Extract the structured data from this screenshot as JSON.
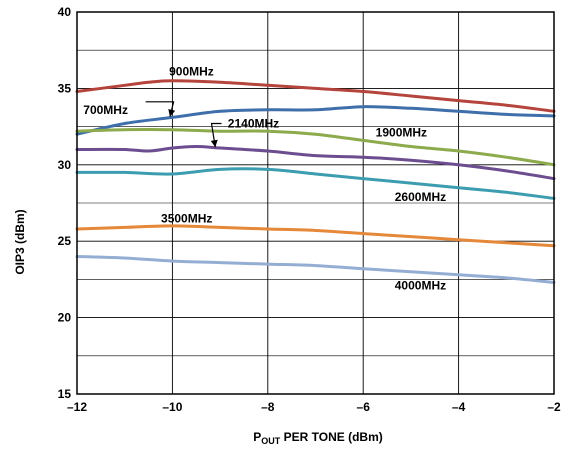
{
  "chart_data": {
    "type": "line",
    "title": "",
    "xlabel": {
      "main": "P",
      "sub": "OUT",
      "rest": " PER TONE (dBm)"
    },
    "ylabel": "OIP3 (dBm)",
    "xlim": [
      -12,
      -2
    ],
    "ylim": [
      15,
      40
    ],
    "grid": true,
    "x_ticks": [
      -12,
      -10,
      -8,
      -6,
      -4,
      -2
    ],
    "x_tick_labels": [
      "–12",
      "–10",
      "–8",
      "–6",
      "–4",
      "–2"
    ],
    "y_ticks": [
      15,
      20,
      25,
      30,
      35,
      40
    ],
    "y_tick_labels": [
      "15",
      "20",
      "25",
      "30",
      "35",
      "40"
    ],
    "series": [
      {
        "name": "900MHz",
        "color": "#b5443d",
        "x": [
          -12,
          -11,
          -10.5,
          -10,
          -9,
          -8,
          -7,
          -6,
          -5,
          -4,
          -3,
          -2
        ],
        "y": [
          34.8,
          35.2,
          35.4,
          35.5,
          35.4,
          35.2,
          35.0,
          34.8,
          34.5,
          34.2,
          33.9,
          33.5
        ]
      },
      {
        "name": "700MHz",
        "color": "#3f6fab",
        "x": [
          -12,
          -11,
          -10,
          -9,
          -8,
          -7,
          -6,
          -5,
          -4,
          -3,
          -2
        ],
        "y": [
          32.0,
          32.7,
          33.1,
          33.5,
          33.6,
          33.6,
          33.8,
          33.7,
          33.5,
          33.3,
          33.2
        ]
      },
      {
        "name": "1900MHz",
        "color": "#8daa4c",
        "x": [
          -12,
          -11,
          -10,
          -9,
          -8,
          -7,
          -6,
          -5,
          -4,
          -3,
          -2
        ],
        "y": [
          32.2,
          32.3,
          32.3,
          32.2,
          32.2,
          32.0,
          31.6,
          31.2,
          30.9,
          30.5,
          30.0
        ]
      },
      {
        "name": "2140MHz",
        "color": "#6c4d8f",
        "x": [
          -12,
          -11,
          -10.5,
          -10,
          -9.5,
          -9,
          -8,
          -7,
          -6,
          -5,
          -4,
          -3,
          -2
        ],
        "y": [
          31.0,
          31.0,
          30.9,
          31.1,
          31.2,
          31.1,
          30.9,
          30.6,
          30.5,
          30.3,
          30.0,
          29.6,
          29.1
        ]
      },
      {
        "name": "2600MHz",
        "color": "#3d9db0",
        "x": [
          -12,
          -11,
          -10,
          -9,
          -8,
          -7,
          -6,
          -5,
          -4,
          -3,
          -2
        ],
        "y": [
          29.5,
          29.5,
          29.4,
          29.7,
          29.7,
          29.4,
          29.1,
          28.8,
          28.5,
          28.2,
          27.8
        ]
      },
      {
        "name": "3500MHz",
        "color": "#e5883a",
        "x": [
          -12,
          -11,
          -10,
          -9,
          -8,
          -7,
          -6,
          -5,
          -4,
          -3,
          -2
        ],
        "y": [
          25.8,
          25.9,
          26.0,
          25.9,
          25.8,
          25.7,
          25.5,
          25.3,
          25.1,
          24.9,
          24.7
        ]
      },
      {
        "name": "4000MHz",
        "color": "#94aed3",
        "x": [
          -12,
          -11,
          -10,
          -9,
          -8,
          -7,
          -6,
          -5,
          -4,
          -3,
          -2
        ],
        "y": [
          24.0,
          23.9,
          23.7,
          23.6,
          23.5,
          23.4,
          23.2,
          23.0,
          22.8,
          22.6,
          22.3
        ]
      }
    ],
    "annotations": [
      {
        "text": "900MHz",
        "x": -9.6,
        "y": 36.1
      },
      {
        "text": "700MHz",
        "x": -11.4,
        "y": 33.6,
        "arrow_to": [
          -10.05,
          33.15
        ]
      },
      {
        "text": "2140MHz",
        "x": -8.3,
        "y": 32.7,
        "arrow_to": [
          -9.1,
          31.15
        ]
      },
      {
        "text": "1900MHz",
        "x": -5.2,
        "y": 32.1
      },
      {
        "text": "2600MHz",
        "x": -4.8,
        "y": 27.9
      },
      {
        "text": "3500MHz",
        "x": -9.7,
        "y": 26.5
      },
      {
        "text": "4000MHz",
        "x": -4.8,
        "y": 22.1
      }
    ]
  }
}
